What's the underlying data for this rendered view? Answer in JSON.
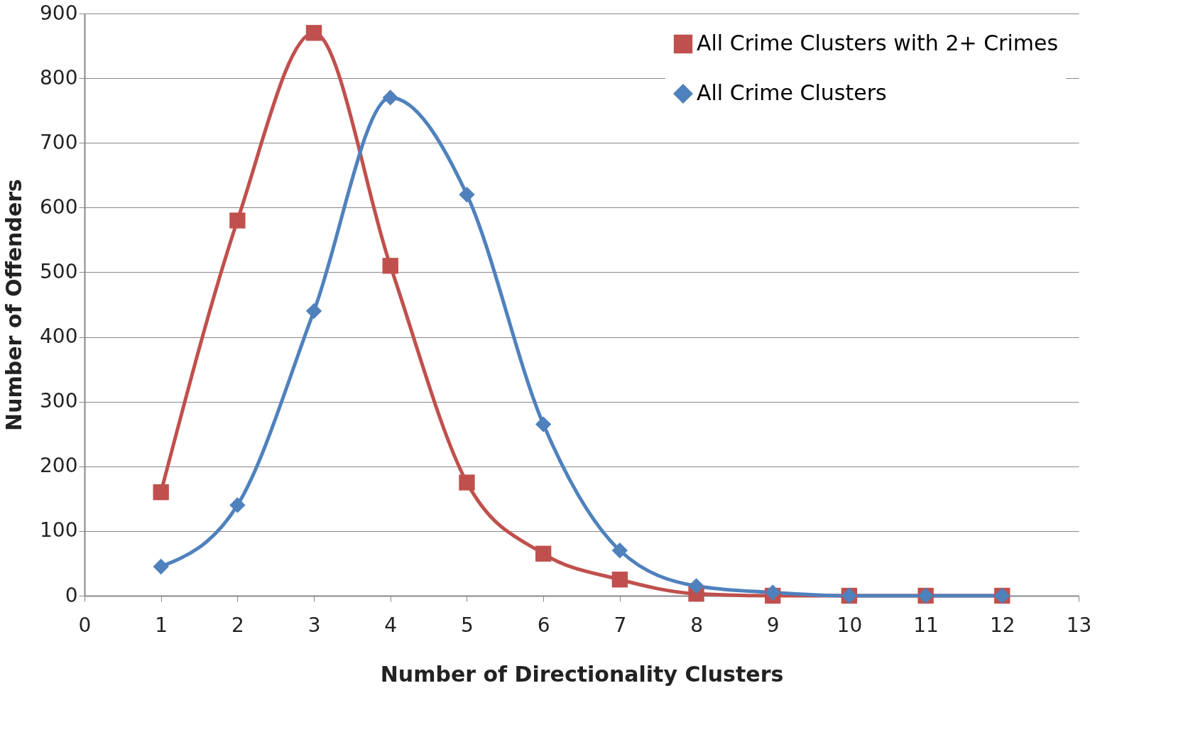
{
  "chart_data": {
    "type": "line",
    "xlabel": "Number of Directionality Clusters",
    "ylabel": "Number of Offenders",
    "x": [
      1,
      2,
      3,
      4,
      5,
      6,
      7,
      8,
      9,
      10,
      11,
      12
    ],
    "series": [
      {
        "name": "All Crime Clusters with 2+ Crimes",
        "color": "#c0504d",
        "marker": "square",
        "values": [
          160,
          580,
          870,
          510,
          175,
          65,
          25,
          3,
          0,
          0,
          0,
          0
        ]
      },
      {
        "name": "All Crime Clusters",
        "color": "#4f81bd",
        "marker": "diamond",
        "values": [
          45,
          140,
          440,
          770,
          620,
          265,
          70,
          15,
          5,
          0,
          0,
          0
        ]
      }
    ],
    "xlim": [
      0,
      13
    ],
    "xticks": [
      0,
      1,
      2,
      3,
      4,
      5,
      6,
      7,
      8,
      9,
      10,
      11,
      12,
      13
    ],
    "ylim": [
      0,
      900
    ],
    "yticks": [
      0,
      100,
      200,
      300,
      400,
      500,
      600,
      700,
      800,
      900
    ],
    "grid": "y",
    "legend": "top right",
    "line_style": "solid"
  }
}
